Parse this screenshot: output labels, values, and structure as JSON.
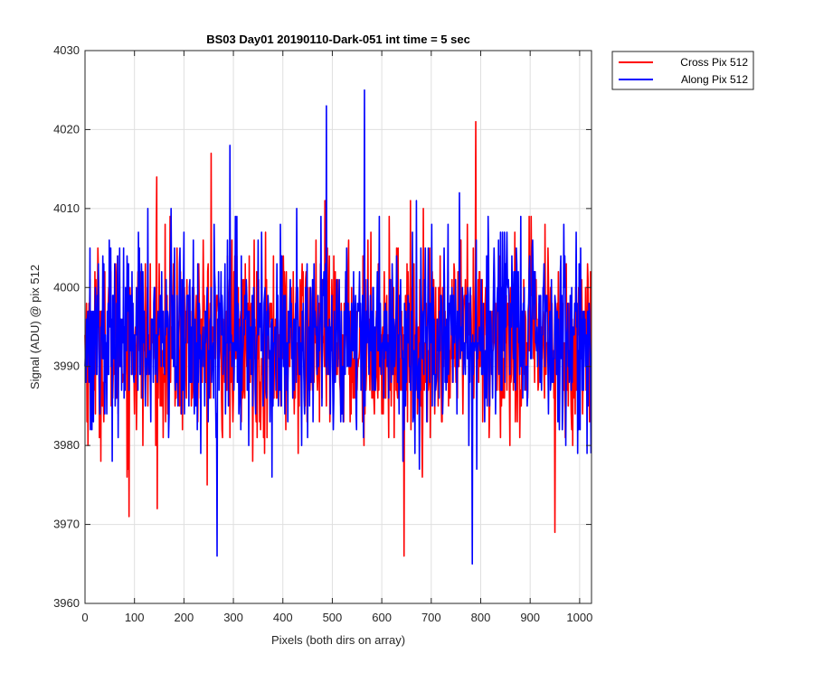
{
  "chart_data": {
    "type": "line",
    "title": "BS03 Day01 20190110-Dark-051 int time = 5 sec",
    "xlabel": "Pixels (both dirs on array)",
    "ylabel": "Signal (ADU) @ pix 512",
    "xlim": [
      0,
      1024
    ],
    "ylim": [
      3960,
      4030
    ],
    "xticks": [
      0,
      100,
      200,
      300,
      400,
      500,
      600,
      700,
      800,
      900,
      1000
    ],
    "yticks": [
      3960,
      3970,
      3980,
      3990,
      4000,
      4010,
      4020,
      4030
    ],
    "grid": true,
    "legend_position": "outside-top-right",
    "series": [
      {
        "name": "Cross Pix 512",
        "color": "#ff0000",
        "mean": 3993,
        "std": 6,
        "points": 1024,
        "notable_points": [
          {
            "x": 89,
            "y": 3971
          },
          {
            "x": 145,
            "y": 4014
          },
          {
            "x": 255,
            "y": 4017
          },
          {
            "x": 645,
            "y": 3966
          },
          {
            "x": 790,
            "y": 4021
          },
          {
            "x": 950,
            "y": 3969
          }
        ]
      },
      {
        "name": "Along Pix 512",
        "color": "#0000ff",
        "mean": 3994,
        "std": 6,
        "points": 1024,
        "notable_points": [
          {
            "x": 267,
            "y": 3966
          },
          {
            "x": 293,
            "y": 4018
          },
          {
            "x": 488,
            "y": 4023
          },
          {
            "x": 565,
            "y": 4025
          },
          {
            "x": 783,
            "y": 3965
          }
        ]
      }
    ]
  }
}
